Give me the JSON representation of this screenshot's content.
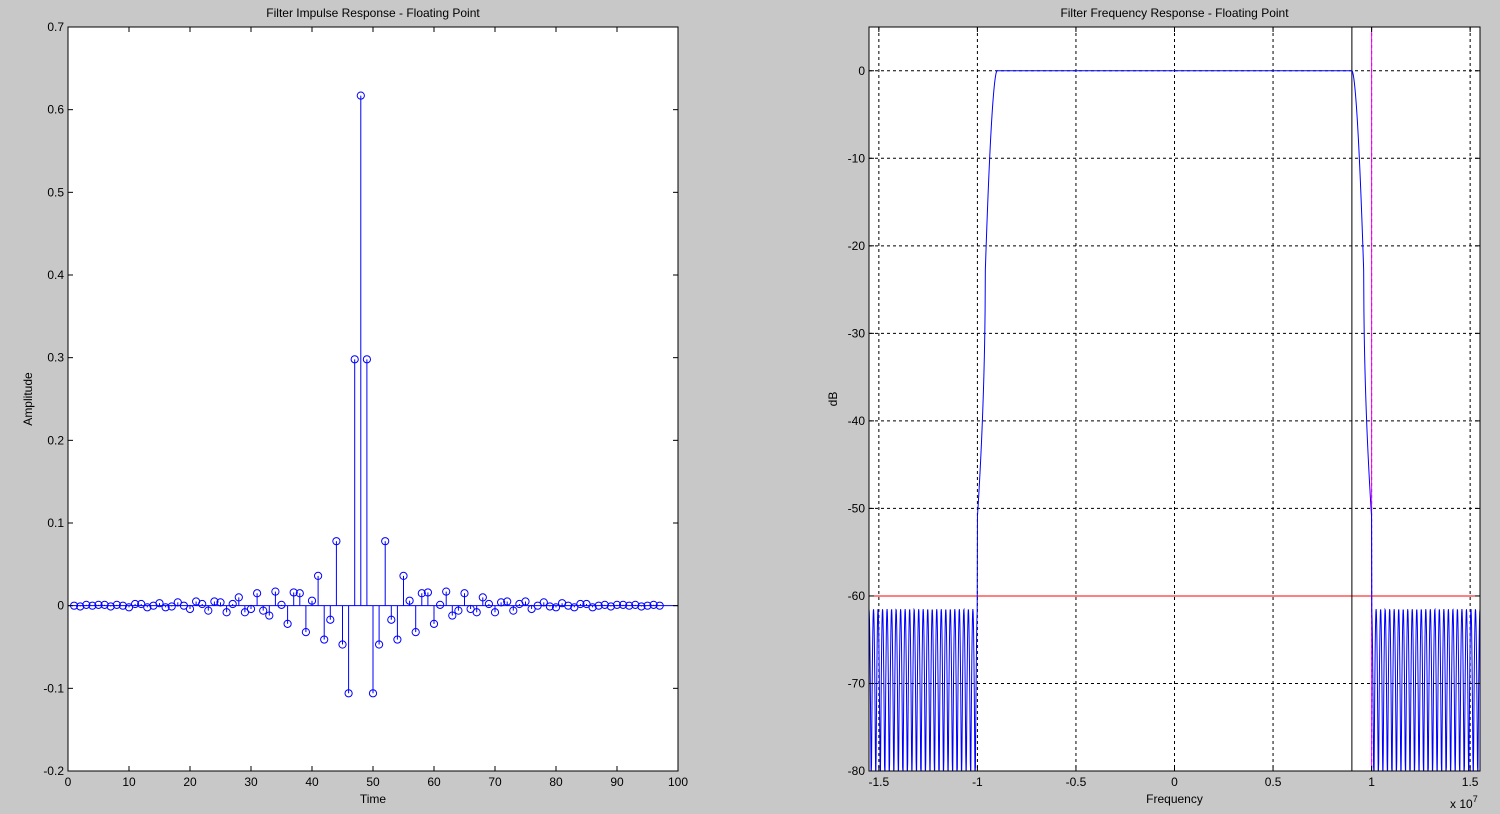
{
  "window": {
    "background": "#c8c8c8"
  },
  "chart_data": [
    {
      "type": "stem",
      "title": "Filter Impulse Response - Floating Point",
      "xlabel": "Time",
      "ylabel": "Amplitude",
      "xlim": [
        0,
        100
      ],
      "ylim": [
        -0.2,
        0.7
      ],
      "xticks": [
        0,
        10,
        20,
        30,
        40,
        50,
        60,
        70,
        80,
        90,
        100
      ],
      "xtick_labels": [
        "0",
        "10",
        "20",
        "30",
        "40",
        "50",
        "60",
        "70",
        "80",
        "90",
        "100"
      ],
      "yticks": [
        -0.2,
        -0.1,
        0,
        0.1,
        0.2,
        0.3,
        0.4,
        0.5,
        0.6,
        0.7
      ],
      "ytick_labels": [
        "-0.2",
        "-0.1",
        "0",
        "0.1",
        "0.2",
        "0.3",
        "0.4",
        "0.5",
        "0.6",
        "0.7"
      ],
      "grid": false,
      "color": "#0000ff",
      "x": [
        1,
        2,
        3,
        4,
        5,
        6,
        7,
        8,
        9,
        10,
        11,
        12,
        13,
        14,
        15,
        16,
        17,
        18,
        19,
        20,
        21,
        22,
        23,
        24,
        25,
        26,
        27,
        28,
        29,
        30,
        31,
        32,
        33,
        34,
        35,
        36,
        37,
        38,
        39,
        40,
        41,
        42,
        43,
        44,
        45,
        46,
        47,
        48,
        49,
        50,
        51,
        52,
        53,
        54,
        55,
        56,
        57,
        58,
        59,
        60,
        61,
        62,
        63,
        64,
        65,
        66,
        67,
        68,
        69,
        70,
        71,
        72,
        73,
        74,
        75,
        76,
        77,
        78,
        79,
        80,
        81,
        82,
        83,
        84,
        85,
        86,
        87,
        88,
        89,
        90,
        91,
        92,
        93,
        94,
        95,
        96,
        97
      ],
      "values": [
        0.0,
        -0.001,
        0.001,
        0.0,
        0.001,
        0.001,
        -0.001,
        0.001,
        0.0,
        -0.002,
        0.002,
        0.002,
        -0.002,
        0.0,
        0.003,
        -0.002,
        -0.001,
        0.004,
        0.0,
        -0.004,
        0.005,
        0.002,
        -0.006,
        0.005,
        0.004,
        -0.008,
        0.002,
        0.01,
        -0.008,
        -0.004,
        0.015,
        -0.006,
        -0.012,
        0.017,
        0.001,
        -0.022,
        0.016,
        0.015,
        -0.032,
        0.006,
        0.036,
        -0.041,
        -0.017,
        0.078,
        -0.047,
        -0.106,
        0.298,
        0.617,
        0.298,
        -0.106,
        -0.047,
        0.078,
        -0.017,
        -0.041,
        0.036,
        0.006,
        -0.032,
        0.015,
        0.016,
        -0.022,
        0.001,
        0.017,
        -0.012,
        -0.006,
        0.015,
        -0.004,
        -0.008,
        0.01,
        0.002,
        -0.008,
        0.004,
        0.005,
        -0.006,
        0.002,
        0.005,
        -0.004,
        0.0,
        0.004,
        -0.001,
        -0.002,
        0.003,
        0.0,
        -0.002,
        0.002,
        0.002,
        -0.002,
        0.0,
        0.001,
        -0.001,
        0.001,
        0.001,
        0.0,
        0.001,
        -0.001,
        0.0,
        0.001,
        0.0
      ]
    },
    {
      "type": "line",
      "title": "Filter Frequency Response - Floating Point",
      "xlabel": "Frequency",
      "ylabel": "dB",
      "x_multiplier_label": "x 10",
      "x_multiplier_exponent": "7",
      "xlim": [
        -15500000,
        15500000
      ],
      "ylim": [
        -80,
        5
      ],
      "xticks": [
        -15000000,
        -10000000,
        -5000000,
        0,
        5000000,
        10000000,
        15000000
      ],
      "xtick_labels": [
        "-1.5",
        "-1",
        "-0.5",
        "0",
        "0.5",
        "1",
        "1.5"
      ],
      "yticks": [
        -80,
        -70,
        -60,
        -50,
        -40,
        -30,
        -20,
        -10,
        0
      ],
      "ytick_labels": [
        "-80",
        "-70",
        "-60",
        "-50",
        "-40",
        "-30",
        "-20",
        "-10",
        "0"
      ],
      "grid": true,
      "reference_lines": [
        {
          "orientation": "horizontal",
          "value": -60,
          "color": "#ff0000"
        },
        {
          "orientation": "vertical",
          "value": 9000000,
          "color": "#000000"
        },
        {
          "orientation": "vertical",
          "value": 10000000,
          "color": "#ff00ff"
        }
      ],
      "series": [
        {
          "color": "#0000ff",
          "passband": {
            "from": -9000000,
            "to": 9000000,
            "level_db": 0
          },
          "transition_bands": [
            {
              "from": -10000000,
              "to": -9000000
            },
            {
              "from": 9000000,
              "to": 10000000
            }
          ],
          "stopband": {
            "ripple_peak_db": -61.5,
            "min_db": -80,
            "ripples_per_side": 24
          }
        }
      ]
    }
  ]
}
